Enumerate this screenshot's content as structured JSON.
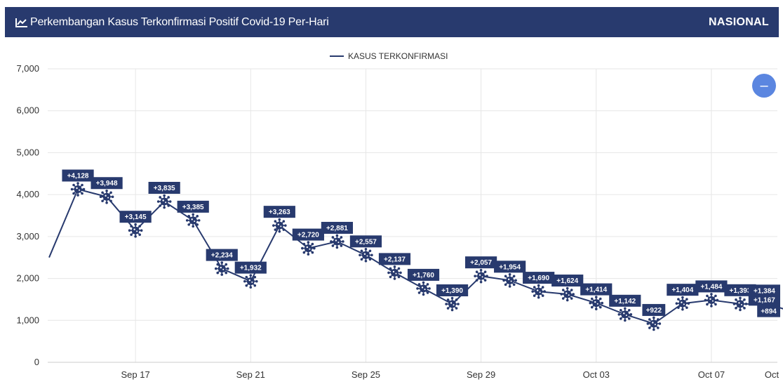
{
  "header": {
    "title": "Perkembangan Kasus Terkonfirmasi Positif Covid-19 Per-Hari",
    "scope": "NASIONAL"
  },
  "zoom_button_label": "–",
  "icons": {
    "title_icon": "line-chart-icon",
    "marker_icon": "virus-icon"
  },
  "colors": {
    "header_bg": "#283a6e",
    "series": "#283a6e",
    "zoom": "#5b86e0"
  },
  "chart_data": {
    "type": "line",
    "title": "Perkembangan Kasus Terkonfirmasi Positif Covid-19 Per-Hari",
    "xlabel": "",
    "ylabel": "",
    "ylim": [
      0,
      7000
    ],
    "xlim": [
      "2020-09-14",
      "2020-10-09"
    ],
    "y_ticks": [
      "0",
      "1,000",
      "2,000",
      "3,000",
      "4,000",
      "5,000",
      "6,000",
      "7,000"
    ],
    "x_ticks": [
      {
        "date": "2020-09-17",
        "label": "Sep 17"
      },
      {
        "date": "2020-09-21",
        "label": "Sep 21"
      },
      {
        "date": "2020-09-25",
        "label": "Sep 25"
      },
      {
        "date": "2020-09-29",
        "label": "Sep 29"
      },
      {
        "date": "2020-10-03",
        "label": "Oct 03"
      },
      {
        "date": "2020-10-07",
        "label": "Oct 07"
      },
      {
        "date": "2020-10-11",
        "label": "Oct"
      }
    ],
    "grid": true,
    "legend_position": "top-center",
    "series": [
      {
        "name": "KASUS TERKONFIRMASI",
        "points": [
          {
            "date": "2020-09-14",
            "value": 2500,
            "label": ""
          },
          {
            "date": "2020-09-15",
            "value": 4128,
            "label": "+4,128"
          },
          {
            "date": "2020-09-16",
            "value": 3948,
            "label": "+3,948"
          },
          {
            "date": "2020-09-17",
            "value": 3145,
            "label": "+3,145"
          },
          {
            "date": "2020-09-18",
            "value": 3835,
            "label": "+3,835"
          },
          {
            "date": "2020-09-19",
            "value": 3385,
            "label": "+3,385"
          },
          {
            "date": "2020-09-20",
            "value": 2234,
            "label": "+2,234"
          },
          {
            "date": "2020-09-21",
            "value": 1932,
            "label": "+1,932"
          },
          {
            "date": "2020-09-22",
            "value": 3263,
            "label": "+3,263"
          },
          {
            "date": "2020-09-23",
            "value": 2720,
            "label": "+2,720"
          },
          {
            "date": "2020-09-24",
            "value": 2881,
            "label": "+2,881"
          },
          {
            "date": "2020-09-25",
            "value": 2557,
            "label": "+2,557"
          },
          {
            "date": "2020-09-26",
            "value": 2137,
            "label": "+2,137"
          },
          {
            "date": "2020-09-27",
            "value": 1760,
            "label": "+1,760"
          },
          {
            "date": "2020-09-28",
            "value": 1390,
            "label": "+1,390"
          },
          {
            "date": "2020-09-29",
            "value": 2057,
            "label": "+2,057"
          },
          {
            "date": "2020-09-30",
            "value": 1954,
            "label": "+1,954"
          },
          {
            "date": "2020-10-01",
            "value": 1690,
            "label": "+1,690"
          },
          {
            "date": "2020-10-02",
            "value": 1624,
            "label": "+1,624"
          },
          {
            "date": "2020-10-03",
            "value": 1414,
            "label": "+1,414"
          },
          {
            "date": "2020-10-04",
            "value": 1142,
            "label": "+1,142"
          },
          {
            "date": "2020-10-05",
            "value": 922,
            "label": "+922"
          },
          {
            "date": "2020-10-06",
            "value": 1404,
            "label": "+1,404"
          },
          {
            "date": "2020-10-07",
            "value": 1484,
            "label": "+1,484"
          },
          {
            "date": "2020-10-08",
            "value": 1393,
            "label": "+1,393"
          },
          {
            "date": "2020-10-09",
            "value": 1384,
            "label": "+1,384"
          },
          {
            "date": "2020-10-10",
            "value": 1167,
            "label": "+1,167"
          },
          {
            "date": "2020-10-11",
            "value": 894,
            "label": "+894"
          }
        ]
      }
    ]
  }
}
